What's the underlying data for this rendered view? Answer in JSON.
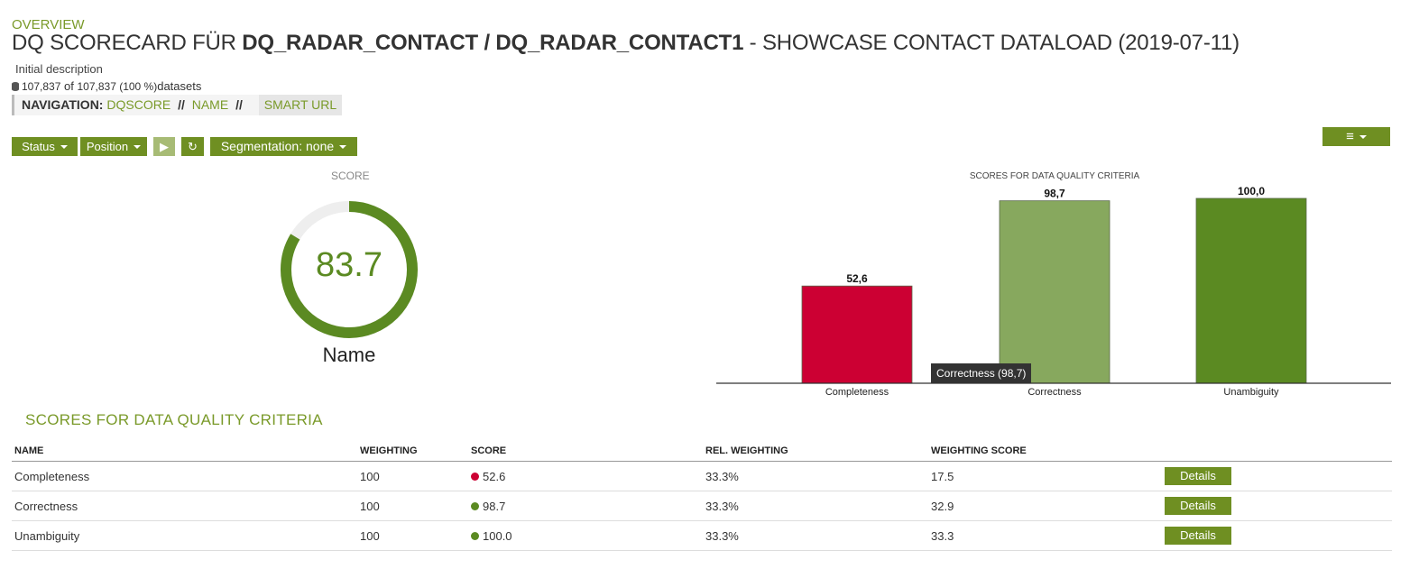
{
  "header": {
    "overview": "OVERVIEW",
    "title_prefix": "DQ SCORECARD FÜR ",
    "title_bold": "DQ_RADAR_CONTACT / DQ_RADAR_CONTACT1",
    "title_suffix": " - SHOWCASE CONTACT DATALOAD (2019-07-11)",
    "description": "Initial description",
    "datasets_count": "107,837",
    "datasets_of": "of",
    "datasets_total": "107,837 (100 %)",
    "datasets_label": "datasets"
  },
  "navigation": {
    "label": "NAVIGATION:",
    "crumbs": [
      "DQSCORE",
      "NAME"
    ],
    "separator": "//",
    "smart_url": "SMART URL"
  },
  "toolbar": {
    "status": "Status",
    "position": "Position",
    "play": "▶",
    "refresh": "↻",
    "segmentation": "Segmentation: none",
    "menu": "≡"
  },
  "gauge": {
    "label": "SCORE",
    "value": "83.7",
    "value_num": 83.7,
    "name": "Name",
    "color": "#5b8a22",
    "track_color": "#eeeeee"
  },
  "chart_data": {
    "type": "bar",
    "title": "SCORES FOR DATA QUALITY CRITERIA",
    "categories": [
      "Completeness",
      "Correctness",
      "Unambiguity"
    ],
    "values": [
      52.6,
      98.7,
      100.0
    ],
    "data_labels": [
      "52,6",
      "98,7",
      "100,0"
    ],
    "colors": [
      "#cc0033",
      "#87a85e",
      "#5b8a22"
    ],
    "ylim": [
      0,
      100
    ],
    "grid": false
  },
  "tooltip": {
    "text": "Correctness (98,7)"
  },
  "table": {
    "title": "SCORES FOR DATA QUALITY CRITERIA",
    "headers": [
      "NAME",
      "WEIGHTING",
      "SCORE",
      "REL. WEIGHTING",
      "WEIGHTING SCORE",
      ""
    ],
    "rows": [
      {
        "name": "Completeness",
        "weighting": "100",
        "score": "52.6",
        "score_color": "#cc0033",
        "rel": "33.3%",
        "wscore": "17.5",
        "action": "Details"
      },
      {
        "name": "Correctness",
        "weighting": "100",
        "score": "98.7",
        "score_color": "#5b8a22",
        "rel": "33.3%",
        "wscore": "32.9",
        "action": "Details"
      },
      {
        "name": "Unambiguity",
        "weighting": "100",
        "score": "100.0",
        "score_color": "#5b8a22",
        "rel": "33.3%",
        "wscore": "33.3",
        "action": "Details"
      }
    ]
  }
}
